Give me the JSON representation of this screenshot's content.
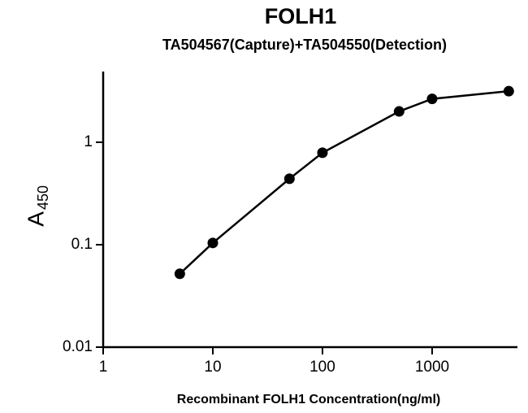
{
  "chart_data": {
    "type": "line",
    "title": "FOLH1",
    "subtitle": "TA504567(Capture)+TA504550(Detection)",
    "x_label": "Recombinant FOLH1 Concentration(ng/ml)",
    "y_label": "A",
    "y_label_subscript": "450",
    "x": [
      5,
      10,
      50,
      100,
      500,
      1000,
      5000
    ],
    "series": [
      {
        "color": "#000000",
        "values": [
          0.052,
          0.104,
          0.44,
          0.79,
          2.0,
          2.65,
          3.15
        ]
      }
    ],
    "x_log": true,
    "y_log": true,
    "xlim": [
      1,
      6000
    ],
    "ylim": [
      0.01,
      4.9
    ],
    "xticks": [
      1,
      10,
      100,
      1000
    ],
    "yticks": [
      0.01,
      0.1,
      1
    ],
    "markers": true
  }
}
